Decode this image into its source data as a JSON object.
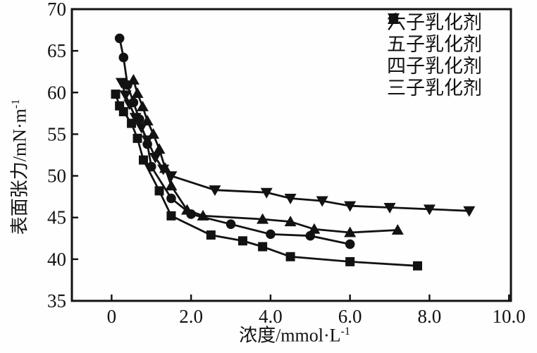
{
  "figure": {
    "background": "#fefefe",
    "ink_color": "#121212"
  },
  "axes": {
    "x_label_base": "浓度/mmol·L",
    "x_label_sup": "-1",
    "y_label_base": "表面张力/mN·m",
    "y_label_sup": "-1",
    "x_tick_labels": [
      "0",
      "2.0",
      "4.0",
      "6.0",
      "8.0",
      "10.0"
    ],
    "y_tick_labels": [
      "35",
      "40",
      "45",
      "50",
      "55",
      "60",
      "65",
      "70"
    ]
  },
  "legend": {
    "entries": [
      {
        "marker": "square",
        "label": "六子乳化剂"
      },
      {
        "marker": "circle",
        "label": "五子乳化剂"
      },
      {
        "marker": "triangle-up",
        "label": "四子乳化剂"
      },
      {
        "marker": "triangle-down",
        "label": "三子乳化剂"
      }
    ]
  },
  "chart_data": {
    "type": "line",
    "title": "",
    "xlabel": "浓度/mmol·L⁻¹",
    "ylabel": "表面张力/mN·m⁻¹",
    "xlim": [
      -1.0,
      10.05
    ],
    "ylim": [
      35,
      70
    ],
    "x_tick_values": [
      0,
      2,
      4,
      6,
      8,
      10
    ],
    "y_tick_values": [
      35,
      40,
      45,
      50,
      55,
      60,
      65,
      70
    ],
    "grid": false,
    "legend_position": "top-right",
    "series": [
      {
        "name": "六子乳化剂",
        "marker": "square",
        "points": [
          [
            0.1,
            59.8
          ],
          [
            0.2,
            58.4
          ],
          [
            0.3,
            57.7
          ],
          [
            0.5,
            56.3
          ],
          [
            0.65,
            54.5
          ],
          [
            0.8,
            51.9
          ],
          [
            1.2,
            48.2
          ],
          [
            1.5,
            45.2
          ],
          [
            2.5,
            42.9
          ],
          [
            3.3,
            42.2
          ],
          [
            3.8,
            41.5
          ],
          [
            4.5,
            40.3
          ],
          [
            6.0,
            39.7
          ],
          [
            7.7,
            39.2
          ]
        ]
      },
      {
        "name": "五子乳化剂",
        "marker": "circle",
        "points": [
          [
            0.2,
            66.5
          ],
          [
            0.3,
            64.2
          ],
          [
            0.4,
            60.9
          ],
          [
            0.55,
            58.8
          ],
          [
            0.7,
            56.8
          ],
          [
            0.9,
            53.8
          ],
          [
            1.0,
            51.1
          ],
          [
            1.5,
            47.3
          ],
          [
            2.0,
            45.4
          ],
          [
            3.0,
            44.2
          ],
          [
            4.0,
            43.0
          ],
          [
            5.0,
            42.8
          ],
          [
            6.0,
            41.8
          ]
        ]
      },
      {
        "name": "四子乳化剂",
        "marker": "triangle-up",
        "points": [
          [
            0.55,
            61.5
          ],
          [
            0.65,
            59.9
          ],
          [
            0.78,
            58.3
          ],
          [
            0.9,
            56.6
          ],
          [
            1.05,
            55.0
          ],
          [
            1.2,
            53.2
          ],
          [
            1.35,
            50.9
          ],
          [
            1.5,
            48.8
          ],
          [
            1.9,
            45.9
          ],
          [
            2.3,
            45.2
          ],
          [
            3.8,
            44.8
          ],
          [
            4.5,
            44.5
          ],
          [
            5.1,
            43.6
          ],
          [
            6.0,
            43.2
          ],
          [
            7.2,
            43.5
          ]
        ]
      },
      {
        "name": "三子乳化剂",
        "marker": "triangle-down",
        "points": [
          [
            0.25,
            61.2
          ],
          [
            0.35,
            59.7
          ],
          [
            0.45,
            58.6
          ],
          [
            0.6,
            57.0
          ],
          [
            0.75,
            55.8
          ],
          [
            0.9,
            54.3
          ],
          [
            1.1,
            52.2
          ],
          [
            1.3,
            50.8
          ],
          [
            1.5,
            50.0
          ],
          [
            2.6,
            48.3
          ],
          [
            3.9,
            48.0
          ],
          [
            4.5,
            47.3
          ],
          [
            5.3,
            47.0
          ],
          [
            6.0,
            46.4
          ],
          [
            7.0,
            46.2
          ],
          [
            8.0,
            46.0
          ],
          [
            9.0,
            45.8
          ]
        ]
      }
    ]
  }
}
